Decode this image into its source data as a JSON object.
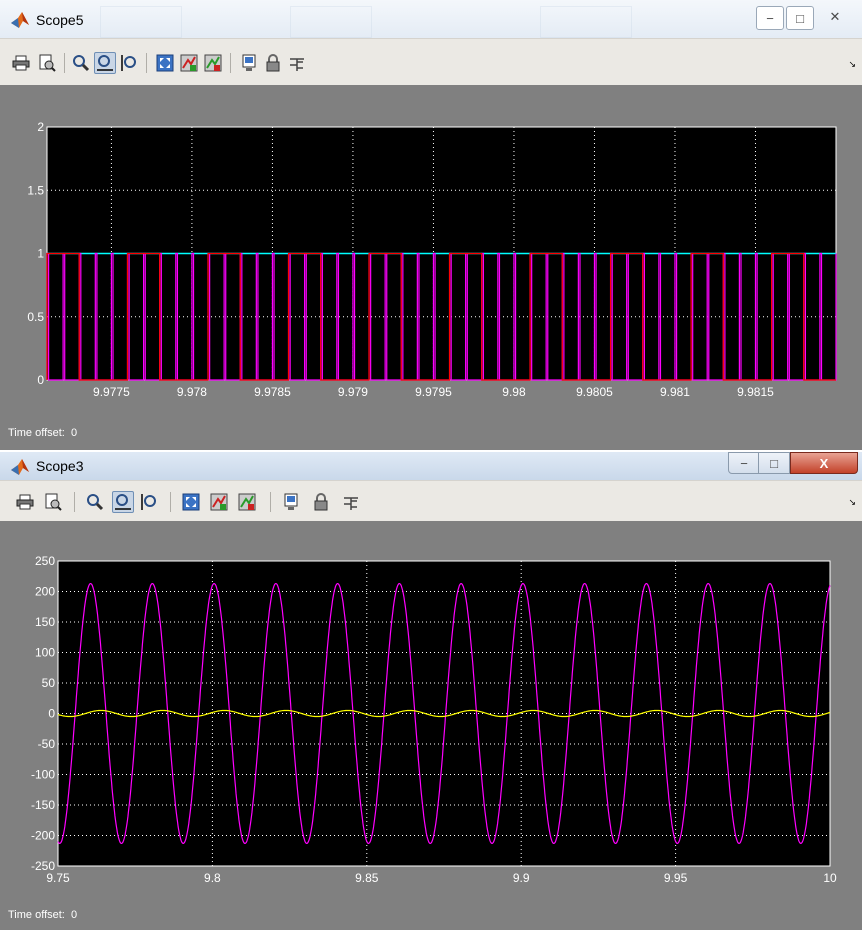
{
  "windows": [
    {
      "title": "Scope5",
      "window_controls": {
        "minimize": "−",
        "maximize": "□",
        "close": "✕"
      },
      "toolbar": [
        "print-icon",
        "print-preview-icon",
        "zoom-in-icon",
        "zoom-x-icon",
        "zoom-y-icon",
        "autoscale-icon",
        "save-axes-icon",
        "restore-axes-icon",
        "parameters-icon",
        "floating-scope-lock-icon",
        "signal-selection-icon"
      ],
      "active_tool": "zoom-x-icon",
      "time_offset_label": "Time offset:",
      "time_offset_value": "0",
      "plot_bg": "#000000",
      "grid_color": "#ffffff",
      "series_colors": [
        "#00ffff",
        "#ff00ff",
        "#ff0000"
      ]
    },
    {
      "title": "Scope3",
      "window_controls": {
        "minimize": "−",
        "maximize": "□",
        "close": "X"
      },
      "toolbar": [
        "print-icon",
        "print-preview-icon",
        "zoom-in-icon",
        "zoom-x-icon",
        "zoom-y-icon",
        "autoscale-icon",
        "save-axes-icon",
        "restore-axes-icon",
        "parameters-icon",
        "floating-scope-lock-icon",
        "signal-selection-icon"
      ],
      "active_tool": "zoom-x-icon",
      "time_offset_label": "Time offset:",
      "time_offset_value": "0",
      "plot_bg": "#000000",
      "grid_color": "#ffffff",
      "series_colors": [
        "#ff00ff",
        "#ffff00"
      ]
    }
  ],
  "chart_data": [
    {
      "type": "line",
      "title": "",
      "xlabel": "",
      "ylabel": "",
      "x_ticks": [
        "9.9775",
        "9.978",
        "9.9785",
        "9.979",
        "9.9795",
        "9.98",
        "9.9805",
        "9.981",
        "9.9815"
      ],
      "y_ticks": [
        "0",
        "0.5",
        "1",
        "1.5",
        "2"
      ],
      "xlim": [
        9.9771,
        9.982
      ],
      "ylim": [
        0,
        2
      ],
      "grid": true,
      "legend": "none",
      "series": [
        {
          "values": [
            1,
            1
          ],
          "x": [
            9.9771,
            9.982
          ],
          "color": "#00ffff"
        },
        {
          "kind": "pulse-train",
          "high": 1,
          "low": 0,
          "period": 0.0001,
          "pulse_width": 1e-05,
          "color": "#ff00ff"
        },
        {
          "kind": "pulse-train",
          "high": 1,
          "low": 0,
          "period": 0.0005,
          "pulse_width": 0.0002,
          "color": "#ff0000"
        }
      ]
    },
    {
      "type": "line",
      "title": "",
      "xlabel": "",
      "ylabel": "",
      "x_ticks": [
        "9.75",
        "9.8",
        "9.85",
        "9.9",
        "9.95",
        "10"
      ],
      "y_ticks": [
        "-250",
        "-200",
        "-150",
        "-100",
        "-50",
        "0",
        "50",
        "100",
        "150",
        "200",
        "250"
      ],
      "xlim": [
        9.75,
        10
      ],
      "ylim": [
        -250,
        250
      ],
      "grid": true,
      "legend": "none",
      "series": [
        {
          "kind": "sine",
          "amplitude": 213,
          "frequency_hz": 50,
          "phase_deg": 80,
          "color": "#ff00ff"
        },
        {
          "kind": "sine",
          "amplitude": 5,
          "frequency_hz": 50,
          "phase_deg": 20,
          "color": "#ffff00"
        }
      ]
    }
  ]
}
